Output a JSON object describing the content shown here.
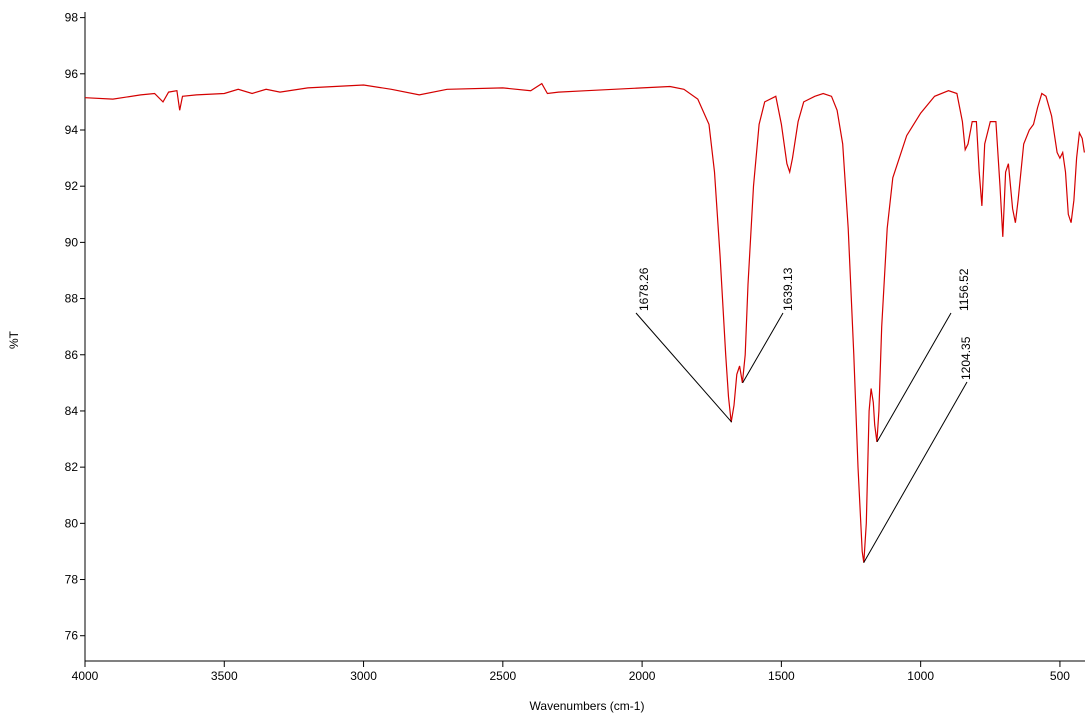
{
  "chart_data": {
    "type": "line",
    "xlabel": "Wavenumbers (cm-1)",
    "ylabel": "%T",
    "xlim": [
      4000,
      410
    ],
    "ylim": [
      75.1,
      98.2
    ],
    "xticks": [
      4000,
      3500,
      3000,
      2500,
      2000,
      1500,
      1000,
      500
    ],
    "yticks": [
      76,
      78,
      80,
      82,
      84,
      86,
      88,
      90,
      92,
      94,
      96,
      98
    ],
    "series": [
      {
        "color": "#d40000",
        "x": [
          4000,
          3900,
          3800,
          3750,
          3720,
          3700,
          3670,
          3660,
          3650,
          3600,
          3500,
          3450,
          3400,
          3350,
          3300,
          3200,
          3000,
          2900,
          2800,
          2700,
          2500,
          2400,
          2360,
          2340,
          2300,
          2200,
          2000,
          1900,
          1850,
          1800,
          1760,
          1740,
          1720,
          1700,
          1690,
          1680,
          1670,
          1660,
          1650,
          1640,
          1630,
          1620,
          1600,
          1580,
          1560,
          1520,
          1500,
          1480,
          1470,
          1460,
          1440,
          1420,
          1380,
          1350,
          1320,
          1300,
          1280,
          1260,
          1240,
          1225,
          1210,
          1204,
          1195,
          1185,
          1178,
          1170,
          1165,
          1157,
          1150,
          1140,
          1120,
          1100,
          1050,
          1000,
          950,
          900,
          870,
          850,
          840,
          830,
          815,
          800,
          790,
          780,
          770,
          750,
          730,
          715,
          705,
          695,
          685,
          670,
          660,
          650,
          630,
          610,
          595,
          580,
          565,
          550,
          530,
          510,
          500,
          490,
          480,
          470,
          460,
          450,
          440,
          430,
          420,
          412
        ],
        "values": [
          95.15,
          95.1,
          95.25,
          95.3,
          95.0,
          95.35,
          95.4,
          94.7,
          95.2,
          95.25,
          95.3,
          95.45,
          95.3,
          95.45,
          95.35,
          95.5,
          95.6,
          95.45,
          95.25,
          95.45,
          95.5,
          95.4,
          95.65,
          95.3,
          95.35,
          95.4,
          95.5,
          95.55,
          95.45,
          95.1,
          94.2,
          92.5,
          89.5,
          86.0,
          84.5,
          83.6,
          84.2,
          85.3,
          85.6,
          85.0,
          86.0,
          88.5,
          92.0,
          94.2,
          95.0,
          95.2,
          94.2,
          92.8,
          92.5,
          93.0,
          94.3,
          95.0,
          95.2,
          95.3,
          95.2,
          94.7,
          93.5,
          90.5,
          86.0,
          82.0,
          79.0,
          78.6,
          80.0,
          84.0,
          84.8,
          84.3,
          83.5,
          82.9,
          84.0,
          87.0,
          90.5,
          92.3,
          93.8,
          94.6,
          95.2,
          95.4,
          95.3,
          94.3,
          93.3,
          93.5,
          94.3,
          94.3,
          92.5,
          91.3,
          93.5,
          94.3,
          94.3,
          92.0,
          90.2,
          92.5,
          92.8,
          91.2,
          90.7,
          91.5,
          93.5,
          94.0,
          94.2,
          94.8,
          95.3,
          95.2,
          94.5,
          93.2,
          93.0,
          93.2,
          92.5,
          91.0,
          90.7,
          91.5,
          93.0,
          93.9,
          93.7,
          93.2
        ]
      }
    ],
    "annotations": [
      {
        "x": 1678.26,
        "y": 83.6
      },
      {
        "x": 1639.13,
        "y": 85.0
      },
      {
        "x": 1156.52,
        "y": 82.9
      },
      {
        "x": 1204.35,
        "y": 78.6
      }
    ]
  }
}
